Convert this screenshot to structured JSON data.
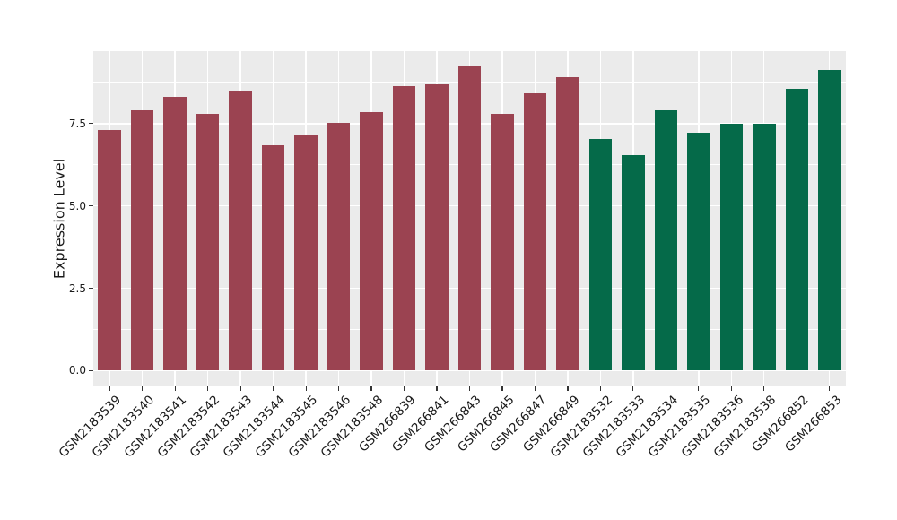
{
  "chart_data": {
    "type": "bar",
    "title": "",
    "xlabel": "",
    "ylabel": "Expression Level",
    "categories": [
      "GSM2183539",
      "GSM2183540",
      "GSM2183541",
      "GSM2183542",
      "GSM2183543",
      "GSM2183544",
      "GSM2183545",
      "GSM2183546",
      "GSM2183548",
      "GSM266839",
      "GSM266841",
      "GSM266843",
      "GSM266845",
      "GSM266847",
      "GSM266849",
      "GSM2183532",
      "GSM2183533",
      "GSM2183534",
      "GSM2183535",
      "GSM2183536",
      "GSM2183538",
      "GSM266852",
      "GSM266853"
    ],
    "values": [
      7.3,
      7.91,
      8.3,
      7.8,
      8.48,
      6.83,
      7.14,
      7.53,
      7.85,
      8.63,
      8.7,
      9.23,
      7.79,
      8.43,
      8.92,
      7.03,
      6.53,
      7.9,
      7.23,
      7.5,
      7.5,
      8.57,
      9.13
    ],
    "groups": [
      0,
      0,
      0,
      0,
      0,
      0,
      0,
      0,
      0,
      0,
      0,
      0,
      0,
      0,
      0,
      1,
      1,
      1,
      1,
      1,
      1,
      1,
      1
    ],
    "group_colors": [
      "#9B4351",
      "#056A49"
    ],
    "yticks": {
      "values": [
        0,
        2.5,
        5.0,
        7.5
      ],
      "labels": [
        "0.0",
        "2.5",
        "5.0",
        "7.5"
      ]
    },
    "minor_yticks": [
      1.25,
      3.75,
      6.25,
      8.75
    ],
    "ylim": [
      -0.48,
      9.7
    ],
    "bar_width_fraction": 0.7,
    "legend": "none",
    "grid": "on",
    "panel_background": "#EBEBEB",
    "gridline_color": "#FFFFFF",
    "tick_color": "#333333",
    "text_color": "#1A1A1A"
  }
}
